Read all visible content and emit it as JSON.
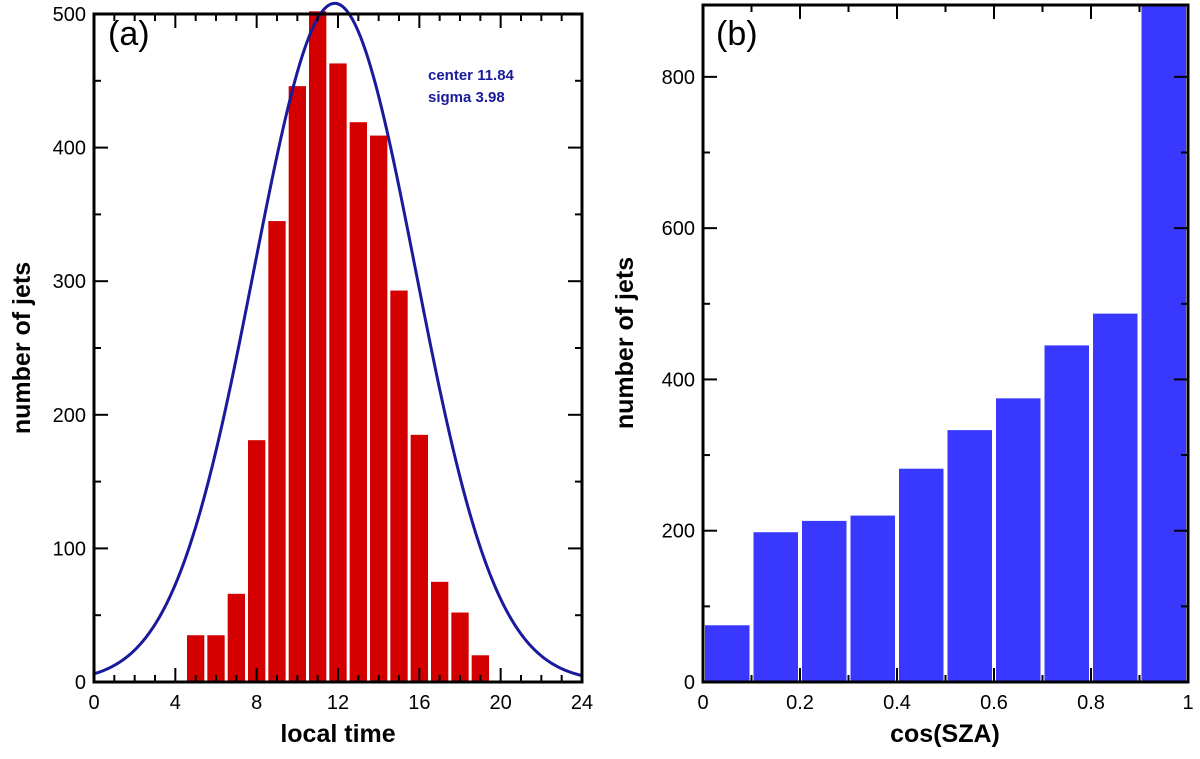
{
  "colors": {
    "panel_a_bars": "#d40000",
    "panel_a_fit": "#1a1a9c",
    "panel_b_bars": "#3838ff",
    "axes": "#000000"
  },
  "chart_data": [
    {
      "type": "bar",
      "panel_label": "(a)",
      "title": "",
      "xlabel": "local time",
      "ylabel": "number of jets",
      "xlim": [
        0,
        24
      ],
      "ylim": [
        0,
        500
      ],
      "xticks": [
        0,
        4,
        8,
        12,
        16,
        20,
        24
      ],
      "yticks": [
        0,
        100,
        200,
        300,
        400,
        500
      ],
      "bin_width": 1,
      "bins": [
        {
          "x": 5,
          "value": 35
        },
        {
          "x": 6,
          "value": 35
        },
        {
          "x": 7,
          "value": 66
        },
        {
          "x": 8,
          "value": 181
        },
        {
          "x": 9,
          "value": 345
        },
        {
          "x": 10,
          "value": 446
        },
        {
          "x": 11,
          "value": 502
        },
        {
          "x": 12,
          "value": 463
        },
        {
          "x": 13,
          "value": 419
        },
        {
          "x": 14,
          "value": 409
        },
        {
          "x": 15,
          "value": 293
        },
        {
          "x": 16,
          "value": 185
        },
        {
          "x": 17,
          "value": 75
        },
        {
          "x": 18,
          "value": 52
        },
        {
          "x": 19,
          "value": 20
        }
      ],
      "fit": {
        "type": "gaussian",
        "center": 11.84,
        "sigma": 3.98,
        "peak": 508
      },
      "annotations": [
        "center 11.84",
        "sigma  3.98"
      ],
      "grid": false
    },
    {
      "type": "bar",
      "panel_label": "(b)",
      "title": "",
      "xlabel": "cos(SZA)",
      "ylabel": "number of jets",
      "xlim": [
        0,
        1
      ],
      "ylim": [
        0,
        895
      ],
      "xticks": [
        "0",
        "0.2",
        "0.4",
        "0.6",
        "0.8",
        "1"
      ],
      "xtick_values": [
        0,
        0.2,
        0.4,
        0.6,
        0.8,
        1
      ],
      "yticks": [
        0,
        200,
        400,
        600,
        800
      ],
      "bin_width": 0.1,
      "bins": [
        {
          "x": 0.05,
          "value": 75
        },
        {
          "x": 0.15,
          "value": 198
        },
        {
          "x": 0.25,
          "value": 213
        },
        {
          "x": 0.35,
          "value": 220
        },
        {
          "x": 0.45,
          "value": 282
        },
        {
          "x": 0.55,
          "value": 333
        },
        {
          "x": 0.65,
          "value": 375
        },
        {
          "x": 0.75,
          "value": 445
        },
        {
          "x": 0.85,
          "value": 487
        },
        {
          "x": 0.95,
          "value": 893
        }
      ],
      "grid": false
    }
  ]
}
